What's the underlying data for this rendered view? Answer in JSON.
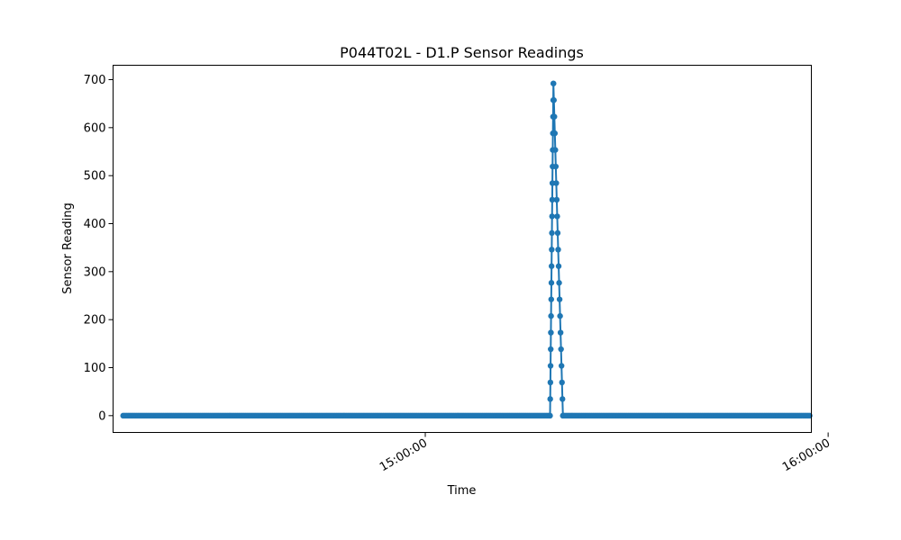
{
  "chart_data": {
    "type": "line",
    "title": "P044T02L - D1.P Sensor Readings",
    "xlabel": "Time",
    "ylabel": "Sensor Reading",
    "x_domain": [
      "14:13:30",
      "15:57:30"
    ],
    "ylim": [
      -35,
      730
    ],
    "x_ticks": [
      {
        "label": "15:00:00",
        "time": "15:00:00"
      },
      {
        "label": "16:00:00",
        "time": "16:00:00"
      }
    ],
    "y_ticks": [
      0,
      100,
      200,
      300,
      400,
      500,
      600,
      700
    ],
    "grid": false,
    "legend": "none",
    "series": [
      {
        "color": "#1f77b4",
        "marker": "circle",
        "baseline_value": 0,
        "baseline_segments": [
          {
            "start": "14:15:00",
            "end": "15:18:35",
            "interval_seconds": 15
          },
          {
            "start": "15:20:30",
            "end": "15:57:15",
            "interval_seconds": 15
          }
        ],
        "spike": {
          "rise": {
            "start": "15:18:35",
            "end": "15:19:05",
            "values": [
              0,
              34.6,
              69.2,
              103.8,
              138.4,
              173,
              207.6,
              242.2,
              276.8,
              311.4,
              346,
              380.6,
              415.2,
              449.8,
              484.4,
              519,
              553.6,
              588.2,
              622.8,
              657.4,
              692
            ]
          },
          "fall": {
            "start": "15:19:05",
            "end": "15:20:30",
            "values": [
              692,
              657.4,
              622.8,
              588.2,
              553.6,
              519,
              484.4,
              449.8,
              415.2,
              380.6,
              346,
              311.4,
              276.8,
              242.2,
              207.6,
              173,
              138.4,
              103.8,
              69.2,
              34.6,
              0
            ]
          }
        }
      }
    ]
  }
}
